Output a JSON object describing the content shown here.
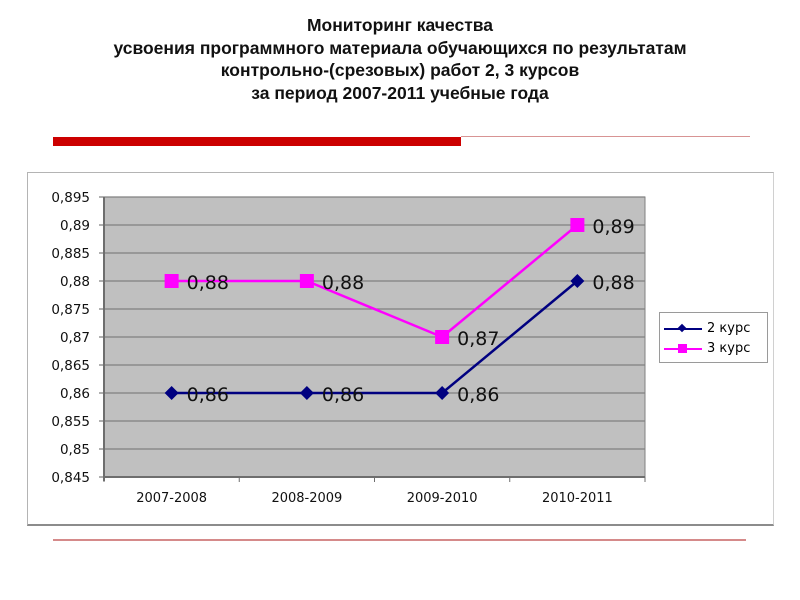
{
  "slide": {
    "title_lines": [
      "Мониторинг качества",
      "усвоения программного материала обучающихся по результатам",
      "контрольно-(срезовых) работ 2, 3 курсов",
      "за период 2007-2011 учебные года"
    ],
    "accent_color": "#cc0000"
  },
  "chart_data": {
    "type": "line",
    "title": "Мониторинг качества усвоения программного материала обучающихся по результатам контрольно-(срезовых) работ 2, 3 курсов за период 2007-2011 учебные года",
    "categories": [
      "2007-2008",
      "2008-2009",
      "2009-2010",
      "2010-2011"
    ],
    "series": [
      {
        "name": "2 курс",
        "values": [
          0.86,
          0.86,
          0.86,
          0.88
        ],
        "labels": [
          "0,86",
          "0,86",
          "0,86",
          "0,88"
        ],
        "color": "#000080",
        "marker": "diamond"
      },
      {
        "name": "3 курс",
        "values": [
          0.88,
          0.88,
          0.87,
          0.89
        ],
        "labels": [
          "0,88",
          "0,88",
          "0,87",
          "0,89"
        ],
        "color": "#ff00ff",
        "marker": "square"
      }
    ],
    "xlabel": "",
    "ylabel": "",
    "ylim": [
      0.845,
      0.895
    ],
    "yticks": [
      0.895,
      0.89,
      0.885,
      0.88,
      0.875,
      0.87,
      0.865,
      0.86,
      0.855,
      0.85,
      0.845
    ],
    "ytick_labels": [
      "0,895",
      "0,89",
      "0,885",
      "0,88",
      "0,875",
      "0,87",
      "0,865",
      "0,86",
      "0,855",
      "0,85",
      "0,845"
    ],
    "grid": true,
    "plot_background": "#c0c0c0",
    "gridline_color": "#808080",
    "legend_position": "right"
  }
}
